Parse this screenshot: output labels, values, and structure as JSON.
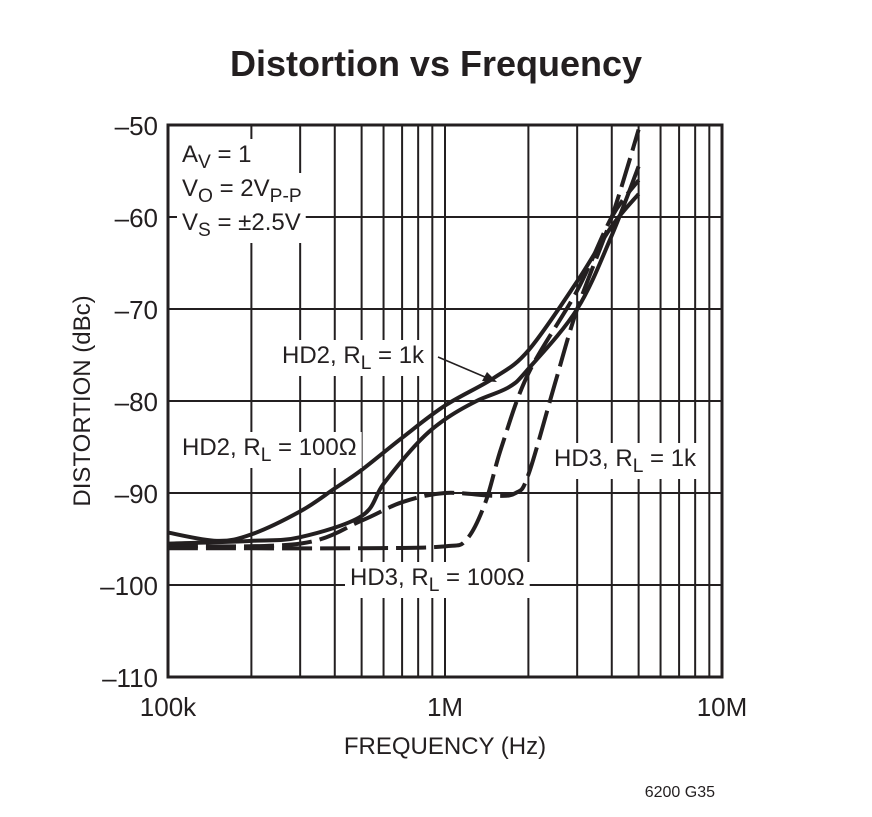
{
  "chart_data": {
    "type": "line",
    "title": "Distortion vs Frequency",
    "xlabel": "FREQUENCY (Hz)",
    "ylabel": "DISTORTION (dBc)",
    "x_scale": "log",
    "xlim": [
      100000,
      10000000
    ],
    "ylim": [
      -110,
      -50
    ],
    "x_ticks": [
      {
        "v": 100000,
        "label": "100k"
      },
      {
        "v": 1000000,
        "label": "1M"
      },
      {
        "v": 10000000,
        "label": "10M"
      }
    ],
    "y_ticks": [
      {
        "v": -50,
        "label": "–50"
      },
      {
        "v": -60,
        "label": "–60"
      },
      {
        "v": -70,
        "label": "–70"
      },
      {
        "v": -80,
        "label": "–80"
      },
      {
        "v": -90,
        "label": "–90"
      },
      {
        "v": -100,
        "label": "–100"
      },
      {
        "v": -110,
        "label": "–110"
      }
    ],
    "grid": true,
    "conditions": [
      "A_V = 1",
      "V_O = 2V_P-P",
      "V_S = ±2.5V"
    ],
    "series": [
      {
        "name": "HD2, RL = 100Ω",
        "style": "solid",
        "x": [
          100000,
          150000,
          200000,
          300000,
          400000,
          500000,
          700000,
          1000000,
          1500000,
          2000000,
          3000000,
          4000000,
          5000000
        ],
        "y": [
          -94.3,
          -95.2,
          -94.5,
          -92,
          -89.5,
          -87.5,
          -84,
          -80.5,
          -77.5,
          -74.5,
          -67,
          -61,
          -57.5
        ]
      },
      {
        "name": "HD2, RL = 1k",
        "style": "solid",
        "x": [
          100000,
          200000,
          300000,
          500000,
          600000,
          800000,
          1000000,
          1300000,
          1700000,
          2000000,
          3000000,
          4000000,
          5000000
        ],
        "y": [
          -95.5,
          -95.2,
          -94.8,
          -92.5,
          -89,
          -84.5,
          -82,
          -80,
          -78.5,
          -76.5,
          -70,
          -62,
          -54.5
        ]
      },
      {
        "name": "HD3, RL = 1k",
        "style": "dashed",
        "x": [
          100000,
          300000,
          500000,
          700000,
          1000000,
          1500000,
          1800000,
          2000000,
          2500000,
          3000000,
          4000000,
          5000000
        ],
        "y": [
          -95.8,
          -95.5,
          -93,
          -91,
          -90,
          -90.3,
          -90,
          -88,
          -78,
          -70,
          -60,
          -50.5
        ]
      },
      {
        "name": "HD3, RL = 100Ω",
        "style": "dashed",
        "x": [
          100000,
          500000,
          1000000,
          1200000,
          1400000,
          1600000,
          2000000,
          3000000,
          4000000,
          5000000
        ],
        "y": [
          -96,
          -96,
          -95.8,
          -95,
          -91,
          -85,
          -77,
          -68,
          -60,
          -56
        ]
      }
    ],
    "annotations": {
      "hd2_1k": {
        "main": "HD2, R",
        "sub": "L",
        "rest": " = 1k"
      },
      "hd2_100": {
        "main": "HD2, R",
        "sub": "L",
        "rest": " = 100Ω"
      },
      "hd3_1k": {
        "main": "HD3, R",
        "sub": "L",
        "rest": " = 1k"
      },
      "hd3_100": {
        "main": "HD3, R",
        "sub": "L",
        "rest": " = 100Ω"
      },
      "av": {
        "main": "A",
        "sub": "V",
        "rest": " = 1"
      },
      "vo": {
        "main": "V",
        "sub": "O",
        "rest": " = 2V",
        "sub2": "P-P"
      },
      "vs": {
        "main": "V",
        "sub": "S",
        "rest": " = ±2.5V"
      }
    },
    "figure_id": "6200 G35"
  }
}
